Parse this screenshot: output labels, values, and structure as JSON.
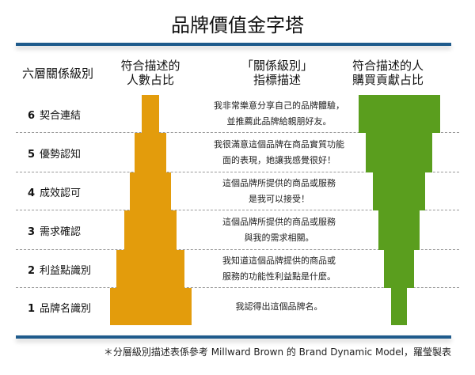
{
  "title": "品牌價值金字塔",
  "headers": {
    "levels": "六層關係級別",
    "people_share": [
      "符合描述的",
      "人數占比"
    ],
    "indicator": [
      "「關係級別」",
      "指標描述"
    ],
    "purchase_share": [
      "符合描述的人",
      "購買貢獻占比"
    ]
  },
  "colors": {
    "people_bar": "#e39c0c",
    "purchase_bar": "#5a9e1e",
    "rule": "#1f5b8c"
  },
  "levels": [
    {
      "num": "6",
      "name": "契合連結",
      "desc": [
        "我非常樂意分享自己的品牌體驗，",
        "並推薦此品牌給親朋好友。"
      ]
    },
    {
      "num": "5",
      "name": "優勢認知",
      "desc": [
        "我很滿意這個品牌在商品實質功能",
        "面的表現，她讓我感覺很好！"
      ]
    },
    {
      "num": "4",
      "name": "成效認可",
      "desc": [
        "這個品牌所提供的商品或服務",
        "是我可以接受！"
      ]
    },
    {
      "num": "3",
      "name": "需求確認",
      "desc": [
        "這個品牌所提供的商品或服務",
        "與我的需求相關。"
      ]
    },
    {
      "num": "2",
      "name": "利益點識別",
      "desc": [
        "我知道這個品牌提供的商品或",
        "服務的功能性利益點是什麼。"
      ]
    },
    {
      "num": "1",
      "name": "品牌名識別",
      "desc": [
        "我認得出這個品牌名。"
      ]
    }
  ],
  "bars": {
    "people_share_relative": [
      22,
      38,
      51,
      65,
      83,
      100
    ],
    "purchase_share_relative": [
      100,
      82,
      65,
      50,
      37,
      20
    ]
  },
  "footnote": "＊分層級別描述表係參考 Millward Brown 的 Brand Dynamic Model，羅瑩製表"
}
